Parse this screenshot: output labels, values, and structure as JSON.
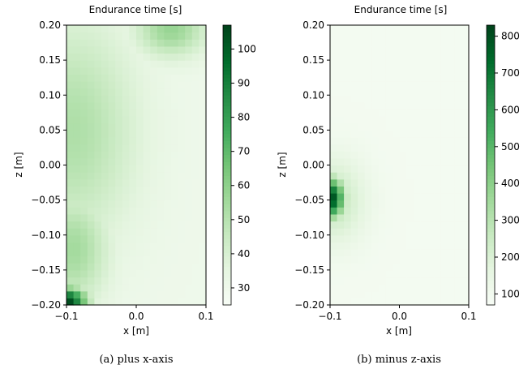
{
  "chart_data": [
    {
      "type": "heatmap",
      "title": "Endurance time [s]",
      "xlabel": "x [m]",
      "ylabel": "z [m]",
      "xlim": [
        -0.1,
        0.1
      ],
      "ylim": [
        -0.2,
        0.2
      ],
      "x_ticks": [
        -0.1,
        0.0,
        0.1
      ],
      "x_tick_labels": [
        "−0.1",
        "0.0",
        "0.1"
      ],
      "y_ticks": [
        -0.2,
        -0.15,
        -0.1,
        -0.05,
        0.0,
        0.05,
        0.1,
        0.15,
        0.2
      ],
      "y_tick_labels": [
        "−0.20",
        "−0.15",
        "−0.10",
        "−0.05",
        "0.00",
        "0.05",
        "0.10",
        "0.15",
        "0.20"
      ],
      "colormap": "Greens",
      "color_range": [
        25,
        107
      ],
      "colorbar_ticks": [
        30,
        40,
        50,
        60,
        70,
        80,
        90,
        100
      ],
      "colorbar_tick_labels": [
        "30",
        "40",
        "50",
        "60",
        "70",
        "80",
        "90",
        "100"
      ],
      "hotspots": [
        {
          "x": -0.1,
          "z": -0.195,
          "value": 107,
          "sx": 0.028,
          "sz": 0.02
        },
        {
          "x": -0.09,
          "z": -0.12,
          "value": 55,
          "sx": 0.05,
          "sz": 0.08
        },
        {
          "x": 0.05,
          "z": 0.195,
          "value": 58,
          "sx": 0.05,
          "sz": 0.04
        },
        {
          "x": -0.09,
          "z": 0.05,
          "value": 52,
          "sx": 0.09,
          "sz": 0.16
        }
      ],
      "base_value": 30,
      "caption": "(a) plus x-axis"
    },
    {
      "type": "heatmap",
      "title": "Endurance time [s]",
      "xlabel": "x [m]",
      "ylabel": "z [m]",
      "xlim": [
        -0.1,
        0.1
      ],
      "ylim": [
        -0.2,
        0.2
      ],
      "x_ticks": [
        -0.1,
        0.0,
        0.1
      ],
      "x_tick_labels": [
        "−0.1",
        "0.0",
        "0.1"
      ],
      "y_ticks": [
        -0.2,
        -0.15,
        -0.1,
        -0.05,
        0.0,
        0.05,
        0.1,
        0.15,
        0.2
      ],
      "y_tick_labels": [
        "−0.20",
        "−0.15",
        "−0.10",
        "−0.05",
        "0.00",
        "0.05",
        "0.10",
        "0.15",
        "0.20"
      ],
      "colormap": "Greens",
      "color_range": [
        70,
        830
      ],
      "colorbar_ticks": [
        100,
        200,
        300,
        400,
        500,
        600,
        700,
        800
      ],
      "colorbar_tick_labels": [
        "100",
        "200",
        "300",
        "400",
        "500",
        "600",
        "700",
        "800"
      ],
      "hotspots": [
        {
          "x": -0.1,
          "z": -0.047,
          "value": 830,
          "sx": 0.02,
          "sz": 0.028
        },
        {
          "x": -0.095,
          "z": -0.05,
          "value": 260,
          "sx": 0.045,
          "sz": 0.06
        }
      ],
      "base_value": 90,
      "caption": "(b) minus z-axis"
    }
  ]
}
